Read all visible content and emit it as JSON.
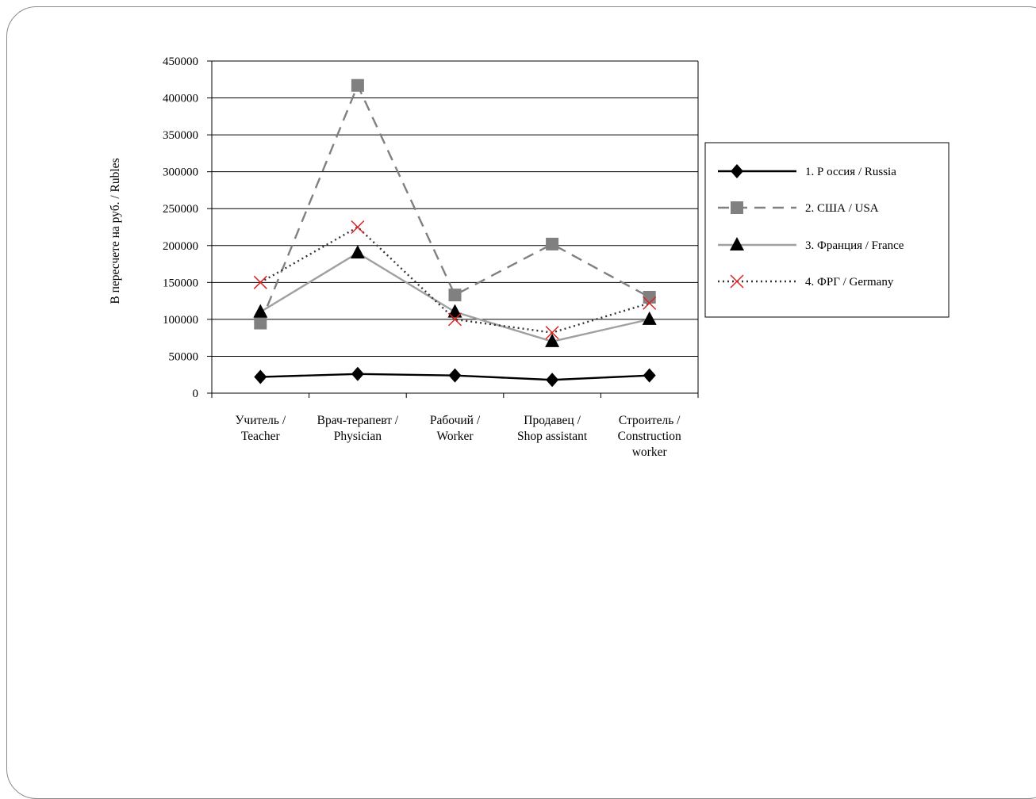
{
  "chart_data": {
    "type": "line",
    "ylabel": "В пересчете на руб. / Rubles",
    "xlabel": "",
    "ylim": [
      0,
      450000
    ],
    "yticks": [
      "450000",
      "400000",
      "350000",
      "300000",
      "250000",
      "200000",
      "150000",
      "100000",
      "50000",
      "0"
    ],
    "categories": [
      [
        "Учитель /",
        "Teacher"
      ],
      [
        "Врач-терапевт /",
        "Physician"
      ],
      [
        "Рабочий /",
        "Worker"
      ],
      [
        "Продавец /",
        "Shop assistant"
      ],
      [
        "Строитель /",
        "Construction",
        "worker"
      ]
    ],
    "grid": true,
    "legend_position": "right",
    "series": [
      {
        "name": "1. Р оссия / Russia",
        "values": [
          22000,
          26000,
          24000,
          18000,
          24000
        ],
        "color": "#000000",
        "dash": "solid",
        "marker": "diamond"
      },
      {
        "name": "2. США / USA",
        "values": [
          95000,
          417000,
          133000,
          202000,
          130000
        ],
        "color": "#808080",
        "dash": "dashed",
        "marker": "square"
      },
      {
        "name": "3. Франция / France",
        "values": [
          110000,
          190000,
          110000,
          70000,
          100000
        ],
        "color": "#a0a0a0",
        "dash": "solid",
        "marker": "triangle"
      },
      {
        "name": "4. ФРГ / Germany",
        "values": [
          150000,
          225000,
          100000,
          82000,
          122000
        ],
        "color": "#333333",
        "dash": "dotted",
        "marker": "x"
      }
    ]
  }
}
